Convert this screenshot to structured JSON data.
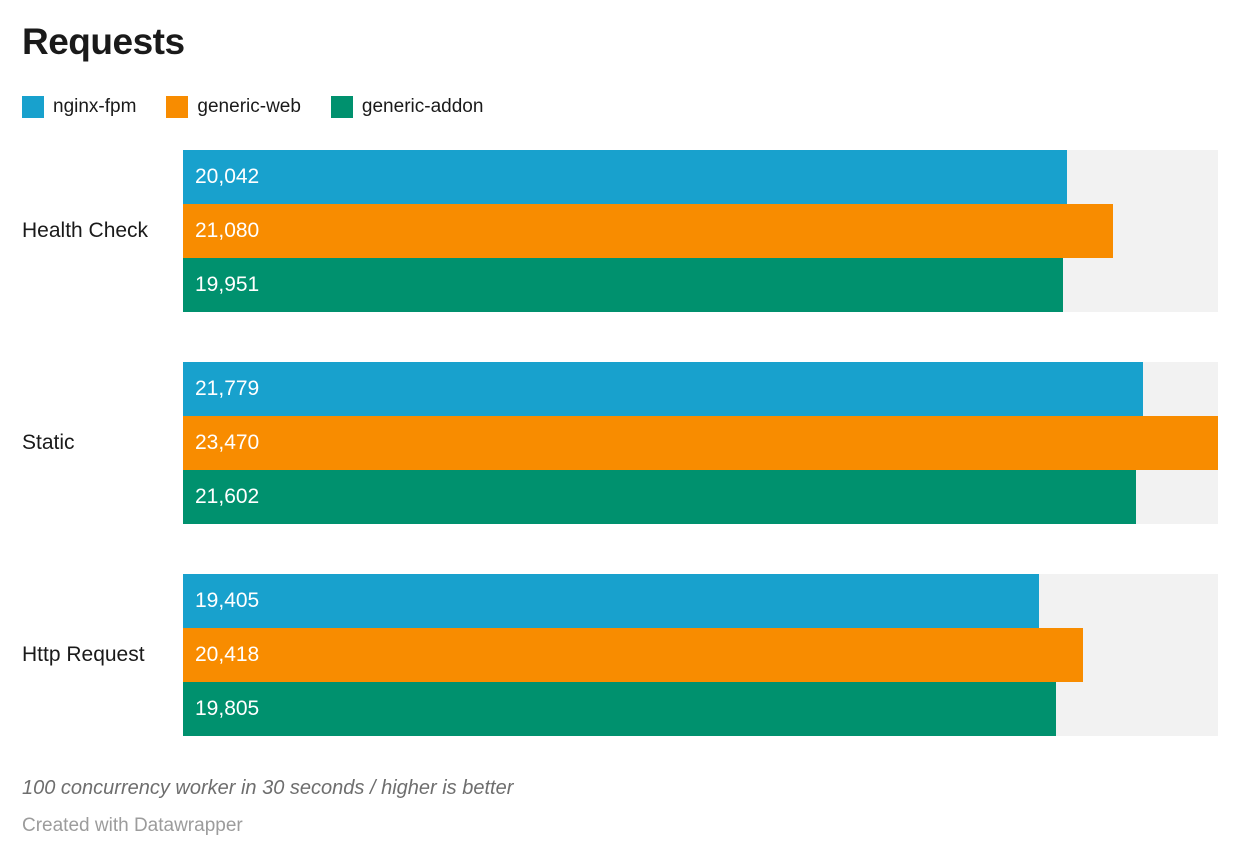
{
  "title": "Requests",
  "legend": [
    {
      "label": "nginx-fpm",
      "color": "#18a1cd",
      "icon": "legend-swatch-square"
    },
    {
      "label": "generic-web",
      "color": "#f88c00",
      "icon": "legend-swatch-square"
    },
    {
      "label": "generic-addon",
      "color": "#00916e",
      "icon": "legend-swatch-square"
    }
  ],
  "chart_data": {
    "type": "bar",
    "orientation": "horizontal",
    "title": "Requests",
    "xlabel": "",
    "ylabel": "",
    "categories": [
      "Health Check",
      "Static",
      "Http Request"
    ],
    "series": [
      {
        "name": "nginx-fpm",
        "color": "#18a1cd",
        "values": [
          20042,
          21779,
          19405
        ],
        "value_labels": [
          "20,042",
          "21,779",
          "19,405"
        ]
      },
      {
        "name": "generic-web",
        "color": "#f88c00",
        "values": [
          21080,
          23470,
          20418
        ],
        "value_labels": [
          "21,080",
          "23,470",
          "20,418"
        ]
      },
      {
        "name": "generic-addon",
        "color": "#00916e",
        "values": [
          19951,
          21602,
          19805
        ],
        "value_labels": [
          "19,951",
          "21,602",
          "19,805"
        ]
      }
    ],
    "xlim": [
      0,
      23470
    ],
    "grid": false,
    "track_color": "#f2f2f2",
    "value_labels_inside_bars": true,
    "legend_position": "top-left"
  },
  "footer": {
    "note": "100 concurrency worker in 30 seconds / higher is better",
    "credit": "Created with Datawrapper"
  }
}
